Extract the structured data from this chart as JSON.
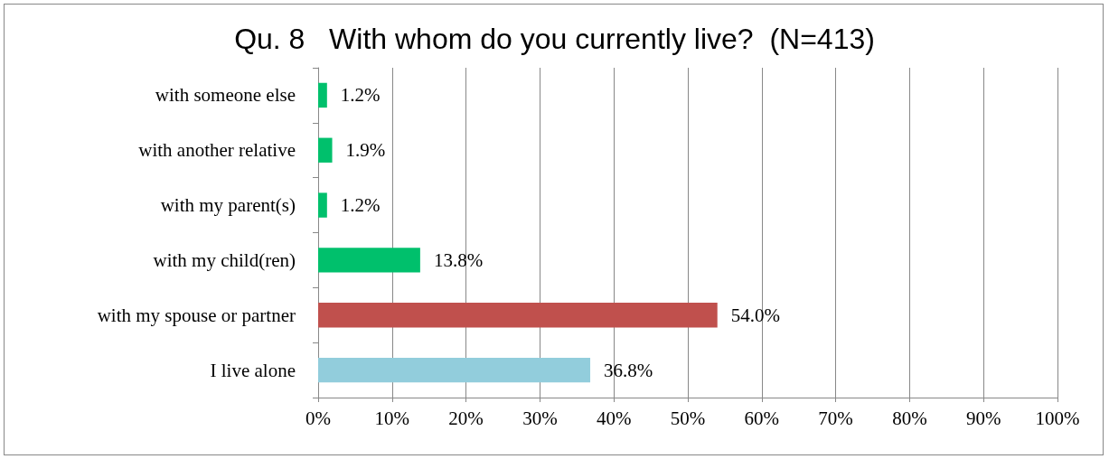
{
  "chart_data": {
    "type": "bar",
    "orientation": "horizontal",
    "title": "Qu. 8   With whom do you currently live?  (N=413)",
    "categories": [
      "with someone else",
      "with another relative",
      "with my parent(s)",
      "with my child(ren)",
      "with my spouse or partner",
      "I live alone"
    ],
    "values": [
      1.2,
      1.9,
      1.2,
      13.8,
      54.0,
      36.8
    ],
    "colors": [
      "#00c06c",
      "#00c06c",
      "#00c06c",
      "#00c06c",
      "#c0504d",
      "#92cddc"
    ],
    "value_labels": [
      "1.2%",
      "1.9%",
      "1.2%",
      "13.8%",
      "54.0%",
      "36.8%"
    ],
    "xlim": [
      0,
      100
    ],
    "xticks": [
      {
        "value": 0,
        "label": "0%"
      },
      {
        "value": 10,
        "label": "10%"
      },
      {
        "value": 20,
        "label": "20%"
      },
      {
        "value": 30,
        "label": "30%"
      },
      {
        "value": 40,
        "label": "40%"
      },
      {
        "value": 50,
        "label": "50%"
      },
      {
        "value": 60,
        "label": "60%"
      },
      {
        "value": 70,
        "label": "70%"
      },
      {
        "value": 80,
        "label": "80%"
      },
      {
        "value": 90,
        "label": "90%"
      },
      {
        "value": 100,
        "label": "100%"
      }
    ],
    "grid": "x"
  }
}
